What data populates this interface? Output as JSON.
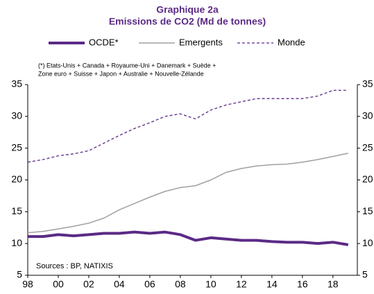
{
  "chart_data": {
    "type": "line",
    "title": [
      "Graphique 2a",
      "Emissions de CO2 (Md de tonnes)"
    ],
    "note": [
      "(*) Etats-Unis + Canada + Royaume-Uni + Danemark + Suède +",
      "Zone euro + Suisse + Japon + Australie + Nouvelle-Zélande"
    ],
    "source": "Sources : BP, NATIXIS",
    "x": [
      1998,
      1999,
      2000,
      2001,
      2002,
      2003,
      2004,
      2005,
      2006,
      2007,
      2008,
      2009,
      2010,
      2011,
      2012,
      2013,
      2014,
      2015,
      2016,
      2017,
      2018,
      2019
    ],
    "series": [
      {
        "name": "OCDE*",
        "color": "#5b2a86",
        "width": 4,
        "dashed": false,
        "values": [
          11.1,
          11.1,
          11.4,
          11.2,
          11.4,
          11.6,
          11.6,
          11.8,
          11.6,
          11.8,
          11.4,
          10.5,
          10.9,
          10.7,
          10.5,
          10.5,
          10.3,
          10.2,
          10.2,
          10.0,
          10.2,
          9.8
        ]
      },
      {
        "name": "Emergents",
        "color": "#a0a0a0",
        "width": 1.5,
        "dashed": false,
        "values": [
          11.7,
          11.9,
          12.3,
          12.7,
          13.2,
          14.0,
          15.3,
          16.3,
          17.3,
          18.2,
          18.8,
          19.1,
          20.0,
          21.2,
          21.8,
          22.2,
          22.4,
          22.5,
          22.8,
          23.2,
          23.7,
          24.2
        ]
      },
      {
        "name": "Monde",
        "color": "#5b2a86",
        "width": 1.3,
        "dashed": true,
        "values": [
          22.8,
          23.2,
          23.8,
          24.1,
          24.6,
          25.8,
          27.0,
          28.1,
          29.0,
          30.0,
          30.4,
          29.6,
          31.0,
          31.8,
          32.3,
          32.8,
          32.8,
          32.8,
          32.8,
          33.2,
          34.1,
          34.1
        ]
      }
    ],
    "xlim": [
      1998,
      2019.6
    ],
    "xticks": [
      {
        "value": 1998,
        "label": "98"
      },
      {
        "value": 2000,
        "label": "00"
      },
      {
        "value": 2002,
        "label": "02"
      },
      {
        "value": 2004,
        "label": "04"
      },
      {
        "value": 2006,
        "label": "06"
      },
      {
        "value": 2008,
        "label": "08"
      },
      {
        "value": 2010,
        "label": "10"
      },
      {
        "value": 2012,
        "label": "12"
      },
      {
        "value": 2014,
        "label": "14"
      },
      {
        "value": 2016,
        "label": "16"
      },
      {
        "value": 2018,
        "label": "18"
      }
    ],
    "ylim": [
      5,
      35
    ],
    "yticks": [
      5,
      10,
      15,
      20,
      25,
      30,
      35
    ],
    "y2lim": [
      5,
      35
    ],
    "y2ticks": [
      5,
      10,
      15,
      20,
      25,
      30,
      35
    ],
    "grid": false,
    "legend": "top"
  }
}
